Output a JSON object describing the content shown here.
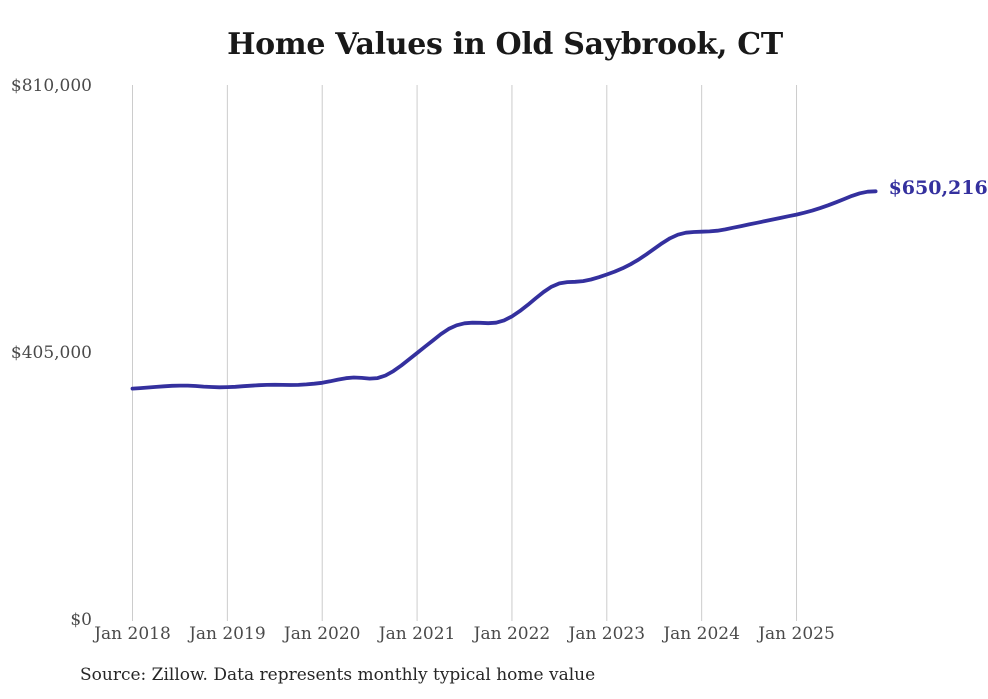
{
  "page": {
    "title": "Home Values in Old Saybrook, CT",
    "source_note": "Source: Zillow. Data represents monthly typical home value"
  },
  "chart_data": {
    "type": "line",
    "title": "Home Values in Old Saybrook, CT",
    "series_name": "Monthly typical home value",
    "unit": "USD",
    "x_monthly": {
      "start": "2018-01",
      "end": "2025-11",
      "step_months": 1,
      "count": 95
    },
    "x_tick_labels": [
      "Jan 2018",
      "Jan 2019",
      "Jan 2020",
      "Jan 2021",
      "Jan 2022",
      "Jan 2023",
      "Jan 2024",
      "Jan 2025"
    ],
    "x_tick_month_indices": [
      0,
      12,
      24,
      36,
      48,
      60,
      72,
      84
    ],
    "y_ticks": [
      {
        "value": 810000,
        "label": "$810,000"
      },
      {
        "value": 405000,
        "label": "$405,000"
      },
      {
        "value": 0,
        "label": "$0"
      }
    ],
    "ylim": [
      0,
      810000
    ],
    "grid": "vertical-only",
    "legend": "none",
    "end_label": "$650,216",
    "end_value": 650216,
    "source": "Source: Zillow. Data represents monthly typical home value",
    "values": [
      351000,
      351800,
      352700,
      353600,
      354500,
      355200,
      355600,
      355500,
      354900,
      354100,
      353400,
      353000,
      353200,
      353800,
      354600,
      355400,
      356100,
      356600,
      356800,
      356600,
      356400,
      356600,
      357300,
      358400,
      359800,
      362000,
      364600,
      366800,
      367800,
      367200,
      366200,
      367000,
      370800,
      377500,
      386000,
      395500,
      405000,
      414500,
      424000,
      433500,
      441500,
      447000,
      450000,
      451000,
      450800,
      450200,
      451000,
      454500,
      460500,
      468500,
      478000,
      488000,
      497500,
      505500,
      510500,
      512500,
      513000,
      514000,
      516500,
      520000,
      524000,
      528500,
      533500,
      539500,
      546500,
      554500,
      563000,
      571500,
      579000,
      584500,
      587500,
      588500,
      589000,
      589500,
      590500,
      592500,
      595000,
      597500,
      600000,
      602500,
      605000,
      607500,
      610000,
      612500,
      615000,
      617800,
      621000,
      624800,
      629000,
      633600,
      638500,
      643300,
      647200,
      649700,
      650216
    ],
    "colors": {
      "line": "#34309e",
      "end_label": "#34309e",
      "gridline": "#cccccc",
      "title_text": "#191919",
      "tick_text": "#4a4a4a",
      "source_text": "#262626"
    }
  }
}
